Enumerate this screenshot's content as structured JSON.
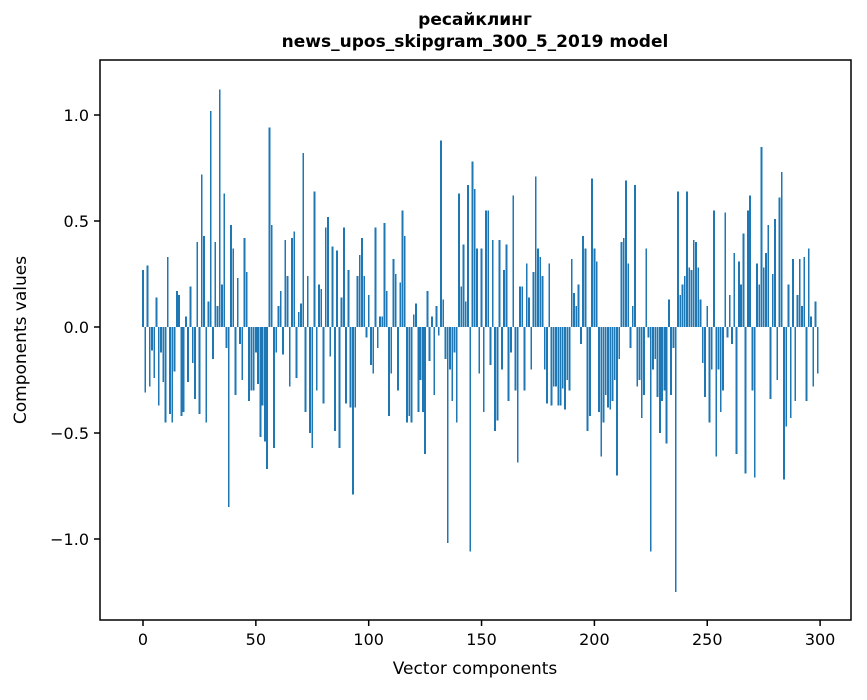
{
  "title": {
    "line1": "ресайклинг",
    "line2": "news_upos_skipgram_300_5_2019 model"
  },
  "axes": {
    "xlabel": "Vector components",
    "ylabel": "Components values"
  },
  "chart_data": {
    "type": "bar",
    "title": "ресайклинг\nnews_upos_skipgram_300_5_2019 model",
    "xlabel": "Vector components",
    "ylabel": "Components values",
    "bar_color": "#1f77b4",
    "axis_color": "#000000",
    "background": "#ffffff",
    "grid": false,
    "legend": null,
    "xlim": [
      -15,
      314
    ],
    "ylim": [
      -1.38,
      1.26
    ],
    "xticks": [
      0,
      50,
      100,
      150,
      200,
      250,
      300
    ],
    "yticks": [
      -1.0,
      -0.5,
      0.0,
      0.5,
      1.0
    ],
    "x_start": 0,
    "n_components": 300,
    "values": [
      0.27,
      -0.31,
      0.29,
      -0.28,
      -0.11,
      -0.24,
      0.14,
      -0.37,
      -0.12,
      -0.26,
      -0.45,
      0.33,
      -0.41,
      -0.45,
      -0.21,
      0.17,
      0.15,
      -0.42,
      -0.4,
      0.05,
      -0.26,
      0.19,
      -0.17,
      -0.34,
      0.4,
      -0.41,
      0.72,
      0.43,
      -0.45,
      0.12,
      1.02,
      -0.15,
      0.4,
      0.1,
      1.12,
      0.2,
      0.63,
      -0.1,
      -0.85,
      0.48,
      0.37,
      -0.32,
      0.23,
      -0.08,
      -0.25,
      0.42,
      0.26,
      -0.35,
      -0.3,
      -0.3,
      -0.12,
      -0.27,
      -0.52,
      -0.37,
      -0.54,
      -0.67,
      0.94,
      0.48,
      -0.57,
      -0.12,
      0.1,
      0.17,
      -0.13,
      0.41,
      0.24,
      -0.28,
      0.42,
      0.45,
      -0.24,
      0.07,
      0.11,
      0.82,
      -0.4,
      0.24,
      -0.5,
      -0.57,
      0.64,
      -0.3,
      0.2,
      0.18,
      -0.36,
      0.47,
      0.52,
      -0.14,
      0.38,
      -0.49,
      0.36,
      -0.57,
      0.14,
      0.47,
      -0.36,
      0.27,
      -0.38,
      -0.79,
      -0.38,
      0.24,
      0.34,
      0.42,
      0.24,
      -0.05,
      0.15,
      -0.18,
      -0.22,
      0.47,
      -0.1,
      0.05,
      0.05,
      0.49,
      0.17,
      -0.42,
      -0.22,
      0.32,
      0.25,
      -0.3,
      0.21,
      0.55,
      0.43,
      -0.45,
      -0.42,
      -0.45,
      0.06,
      0.11,
      -0.4,
      -0.25,
      -0.4,
      -0.6,
      0.17,
      -0.16,
      0.05,
      -0.32,
      0.1,
      -0.04,
      0.88,
      0.13,
      -0.15,
      -1.02,
      -0.2,
      -0.35,
      -0.12,
      -0.45,
      0.63,
      0.19,
      0.39,
      0.12,
      0.67,
      -1.06,
      0.78,
      0.65,
      0.37,
      -0.22,
      0.37,
      -0.4,
      0.55,
      0.55,
      -0.18,
      0.41,
      -0.49,
      -0.44,
      0.41,
      -0.2,
      0.27,
      0.39,
      -0.35,
      -0.12,
      0.62,
      -0.3,
      -0.64,
      0.19,
      0.19,
      -0.3,
      0.3,
      0.14,
      -0.2,
      0.26,
      0.71,
      0.37,
      0.33,
      0.24,
      -0.2,
      -0.36,
      0.3,
      -0.37,
      -0.28,
      -0.28,
      -0.37,
      -0.37,
      -0.29,
      -0.39,
      -0.25,
      -0.3,
      0.32,
      0.16,
      0.1,
      0.2,
      -0.08,
      0.43,
      0.37,
      -0.49,
      -0.42,
      0.7,
      0.37,
      0.31,
      -0.4,
      -0.61,
      -0.45,
      -0.32,
      -0.38,
      -0.39,
      -0.35,
      -0.25,
      -0.7,
      -0.15,
      0.4,
      0.42,
      0.69,
      0.3,
      -0.1,
      0.1,
      0.67,
      -0.28,
      -0.25,
      -0.43,
      -0.32,
      0.37,
      -0.05,
      -1.06,
      -0.2,
      -0.15,
      -0.33,
      -0.5,
      -0.35,
      -0.3,
      -0.55,
      0.13,
      -0.32,
      -0.1,
      -1.25,
      0.64,
      0.15,
      0.2,
      0.24,
      0.64,
      0.28,
      0.27,
      0.41,
      0.4,
      0.28,
      0.13,
      -0.17,
      -0.33,
      0.1,
      -0.45,
      -0.2,
      0.55,
      -0.61,
      -0.2,
      -0.4,
      -0.3,
      0.54,
      -0.05,
      0.15,
      -0.08,
      0.35,
      -0.6,
      0.31,
      0.2,
      0.44,
      -0.69,
      0.55,
      0.62,
      -0.3,
      -0.71,
      0.3,
      0.2,
      0.85,
      0.28,
      0.35,
      0.48,
      -0.34,
      0.25,
      0.51,
      -0.25,
      0.61,
      0.73,
      -0.72,
      -0.47,
      0.2,
      -0.43,
      0.32,
      -0.35,
      0.15,
      0.32,
      0.1,
      0.33,
      -0.35,
      0.37,
      0.05,
      -0.28,
      0.12,
      -0.22
    ]
  }
}
